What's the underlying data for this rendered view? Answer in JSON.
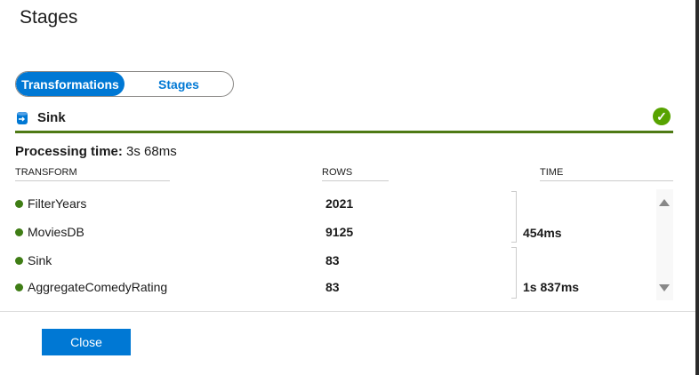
{
  "title": "Stages",
  "toggle": {
    "options": [
      "Transformations",
      "Stages"
    ],
    "selected": "Transformations"
  },
  "section": {
    "name": "Sink",
    "icon": "sink-icon",
    "status": "success",
    "accent": "#4e7a14"
  },
  "processing": {
    "label": "Processing time:",
    "value": "3s 68ms"
  },
  "table": {
    "headers": {
      "transform": "TRANSFORM",
      "rows": "ROWS",
      "time": "TIME"
    },
    "rows": [
      {
        "name": "FilterYears",
        "rows": "2021"
      },
      {
        "name": "MoviesDB",
        "rows": "9125"
      },
      {
        "name": "Sink",
        "rows": "83"
      },
      {
        "name": "AggregateComedyRating",
        "rows": "83"
      }
    ],
    "groups": [
      {
        "time": "454ms"
      },
      {
        "time": "1s 837ms"
      }
    ]
  },
  "close_label": "Close"
}
